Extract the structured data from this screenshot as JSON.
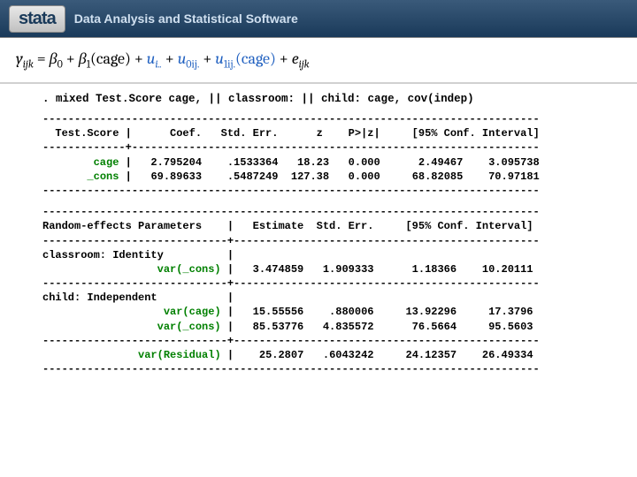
{
  "header": {
    "logo_text": "stata",
    "tagline": "Data Analysis and Statistical Software"
  },
  "equation": {
    "lhs": "y",
    "lhs_sub": "ijk",
    "b0": "β",
    "b0_sub": "0",
    "b1": "β",
    "b1_sub": "1",
    "b1_arg": "(cage)",
    "u_i": "u",
    "u_i_sub": "i..",
    "u0": "u",
    "u0_sub": "0ij.",
    "u1": "u",
    "u1_sub": "1ij.",
    "u1_arg": "(cage)",
    "e": "e",
    "e_sub": "ijk"
  },
  "command": ". mixed Test.Score cage, || classroom: || child: cage, cov(indep)",
  "fixed": {
    "depvar": "Test.Score",
    "header_cols": [
      "Coef.",
      "Std. Err.",
      "z",
      "P>|z|",
      "[95% Conf. Interval]"
    ],
    "rows": [
      {
        "name": "cage",
        "coef": "2.795204",
        "se": ".1533364",
        "z": "18.23",
        "p": "0.000",
        "lo": "2.49467",
        "hi": "3.095738"
      },
      {
        "name": "_cons",
        "coef": "69.89633",
        "se": ".5487249",
        "z": "127.38",
        "p": "0.000",
        "lo": "68.82085",
        "hi": "70.97181"
      }
    ],
    "hline78": "------------------------------------------------------------------------------",
    "cross": "-------------+----------------------------------------------------------------"
  },
  "random": {
    "title": "Random-effects Parameters",
    "header_cols": [
      "Estimate",
      "Std. Err.",
      "[95% Conf. Interval]"
    ],
    "groups": [
      {
        "label": "classroom: Identity",
        "rows": [
          {
            "name": "var(_cons)",
            "est": "3.474859",
            "se": "1.909333",
            "lo": "1.18366",
            "hi": "10.20111"
          }
        ]
      },
      {
        "label": "child: Independent",
        "rows": [
          {
            "name": "var(cage)",
            "est": "15.55556",
            "se": ".880006",
            "lo": "13.92296",
            "hi": "17.3796"
          },
          {
            "name": "var(_cons)",
            "est": "85.53776",
            "se": "4.835572",
            "lo": "76.5664",
            "hi": "95.5603"
          }
        ]
      }
    ],
    "residual": {
      "name": "var(Residual)",
      "est": "25.2807",
      "se": ".6043242",
      "lo": "24.12357",
      "hi": "26.49334"
    },
    "hline78": "------------------------------------------------------------------------------",
    "cross": "-----------------------------+------------------------------------------------"
  },
  "colors": {
    "header_text": "#d0e0f0",
    "keyword_green": "#008000",
    "equation_blue": "#2060c0",
    "header_bg_top": "#3a5a7a",
    "header_bg_bot": "#1a3a5a"
  },
  "typography": {
    "mono_family": "Courier New",
    "mono_size_pt": 12,
    "equation_family": "Cambria",
    "equation_size_pt": 18
  }
}
